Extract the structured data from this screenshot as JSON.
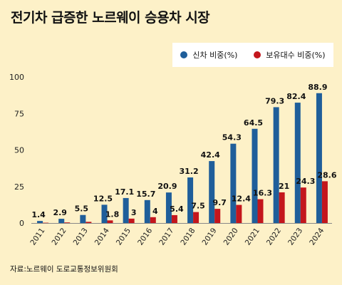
{
  "title": "전기차 급증한 노르웨이 승용차 시장",
  "source": "자료:노르웨이 도로교통정보위원회",
  "chart_data": {
    "type": "bar",
    "categories": [
      "2011",
      "2012",
      "2013",
      "2014",
      "2015",
      "2016",
      "2017",
      "2018",
      "2019",
      "2020",
      "2021",
      "2022",
      "2023",
      "2024"
    ],
    "series": [
      {
        "name": "신차 비중(%)",
        "color": "#1f5e9a",
        "values": [
          1.4,
          2.9,
          5.5,
          12.5,
          17.1,
          15.7,
          20.9,
          31.2,
          42.4,
          54.3,
          64.5,
          79.3,
          82.4,
          88.9
        ]
      },
      {
        "name": "보유대수 비중(%)",
        "color": "#c4161c",
        "values": [
          0.2,
          0.4,
          0.8,
          1.8,
          3,
          4,
          5.4,
          7.5,
          9.7,
          12.4,
          16.3,
          21,
          24.3,
          28.6
        ],
        "labels": [
          "",
          "",
          "",
          "1.8",
          "3",
          "4",
          "5.4",
          "7.5",
          "9.7",
          "12.4",
          "16.3",
          "21",
          "24.3",
          "28.6"
        ]
      }
    ],
    "yticks": [
      0,
      25,
      50,
      75,
      100
    ],
    "ylim": [
      0,
      100
    ],
    "legend_position": "top-right",
    "grid": false
  }
}
